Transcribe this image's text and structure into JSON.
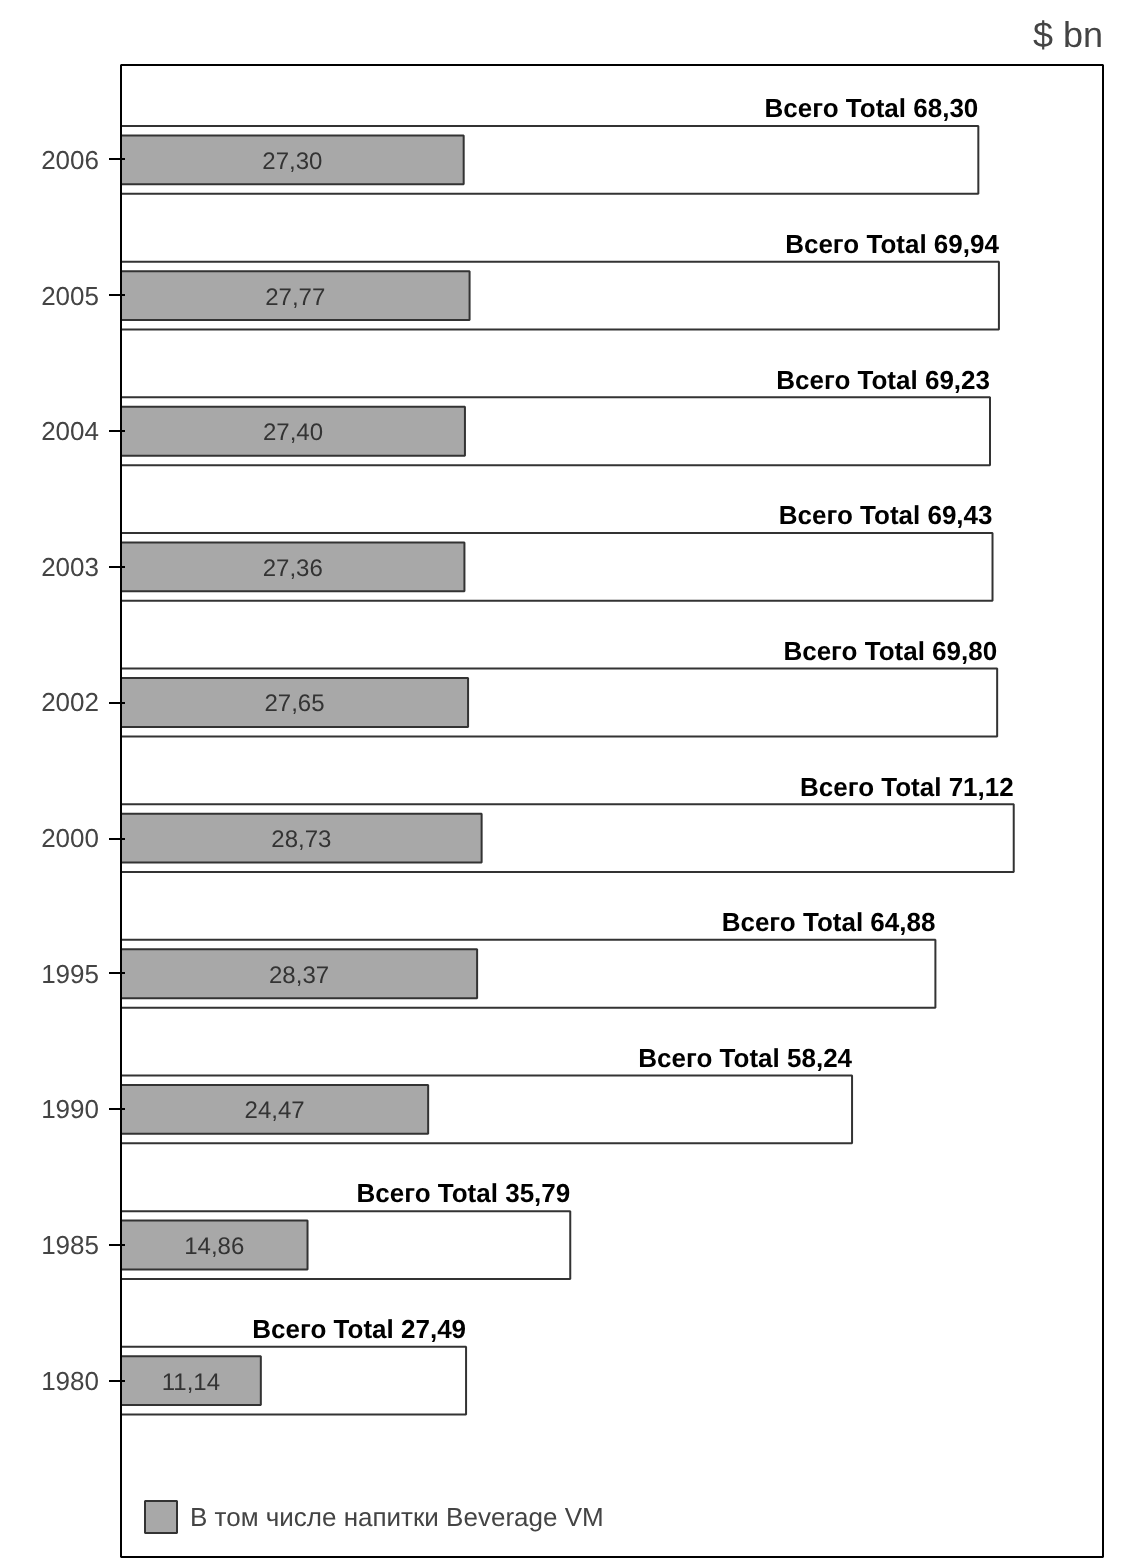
{
  "chart_data": {
    "type": "bar",
    "orientation": "horizontal",
    "categories": [
      "2006",
      "2005",
      "2004",
      "2003",
      "2002",
      "2000",
      "1995",
      "1990",
      "1985",
      "1980"
    ],
    "series": [
      {
        "color": "#ffffff",
        "values": [
          68.3,
          69.94,
          69.23,
          69.43,
          69.8,
          71.12,
          64.88,
          58.24,
          35.79,
          27.49
        ],
        "value_labels": [
          "Всего Total 68,30",
          "Всего Total 69,94",
          "Всего Total 69,23",
          "Всего Total 69,43",
          "Всего Total 69,80",
          "Всего Total 71,12",
          "Всего Total 64,88",
          "Всего Total 58,24",
          "Всего Total 35,79",
          "Всего Total 27,49"
        ]
      },
      {
        "name": "В том числе напитки Beverage VM",
        "color": "#a8a8a8",
        "values": [
          27.3,
          27.77,
          27.4,
          27.36,
          27.65,
          28.73,
          28.37,
          24.47,
          14.86,
          11.14
        ],
        "value_labels": [
          "27,30",
          "27,77",
          "27,40",
          "27,36",
          "27,65",
          "28,73",
          "28,37",
          "24,47",
          "14,86",
          "11,14"
        ]
      }
    ],
    "annotations": [
      "$ bn"
    ],
    "tick_labels": "y",
    "grid": false,
    "legend": "bottom"
  }
}
